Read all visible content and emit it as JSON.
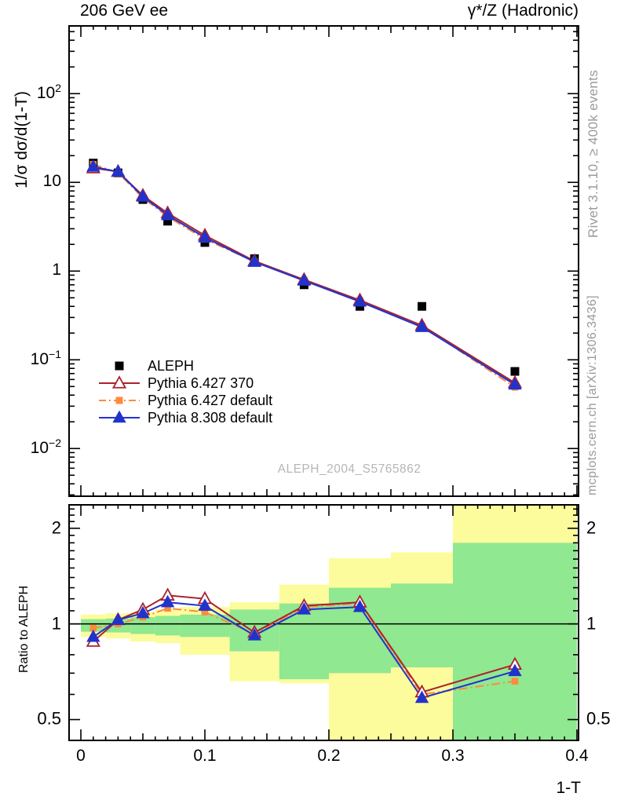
{
  "header": {
    "left": "206 GeV ee",
    "right": "γ*/Z (Hadronic)"
  },
  "side_notes": {
    "top": "Rivet 3.1.10, ≥ 400k events",
    "bottom": "mcplots.cern.ch [arXiv:1306.3436]"
  },
  "watermark": "ALEPH_2004_S5765862",
  "colors": {
    "aleph": "#000000",
    "pythia6_370": "#aa2230",
    "pythia6_default": "#ff8a3c",
    "pythia8_default": "#2233cc",
    "band_yellow": "#fcfc9c",
    "band_green": "#90e890",
    "gray_text": "#9b9b9b",
    "watermark_gray": "#b6b6b6"
  },
  "chart_data": [
    {
      "id": "main-distribution",
      "type": "line",
      "title": "",
      "xlabel": "",
      "ylabel": "1/σ dσ/d(1-T)",
      "yscale": "log",
      "xlim": [
        0,
        0.4
      ],
      "ylim": [
        0.0029,
        580
      ],
      "grid": false,
      "legend_position": "lower-left",
      "bin_edges": [
        0,
        0.02,
        0.04,
        0.06,
        0.08,
        0.12,
        0.16,
        0.2,
        0.25,
        0.3,
        0.4
      ],
      "x": [
        0.01,
        0.03,
        0.05,
        0.07,
        0.1,
        0.14,
        0.18,
        0.225,
        0.275,
        0.35
      ],
      "y_ticks": [
        {
          "label": "10",
          "exp": "2",
          "value": 100
        },
        {
          "label": "10",
          "exp": "",
          "value": 10
        },
        {
          "label": "1",
          "exp": "",
          "value": 1
        },
        {
          "label": "10",
          "exp": "−1",
          "value": 0.1
        },
        {
          "label": "10",
          "exp": "−2",
          "value": 0.01
        }
      ],
      "series": [
        {
          "name": "ALEPH",
          "marker": "filled-square",
          "line": "none",
          "color_key": "aleph",
          "values": [
            16.5,
            12.8,
            6.4,
            3.65,
            2.1,
            1.38,
            0.7,
            0.4,
            0.4,
            0.074
          ]
        },
        {
          "name": "Pythia 6.427 370",
          "marker": "open-triangle",
          "line": "solid",
          "color_key": "pythia6_370",
          "values": [
            14.5,
            13.2,
            7.1,
            4.5,
            2.52,
            1.3,
            0.8,
            0.47,
            0.244,
            0.055
          ]
        },
        {
          "name": "Pythia 6.427 default",
          "marker": "filled-square",
          "line": "dashdot",
          "color_key": "pythia6_default",
          "values": [
            16.0,
            12.8,
            6.7,
            4.1,
            2.29,
            1.28,
            0.79,
            0.464,
            0.24,
            0.049
          ]
        },
        {
          "name": "Pythia 8.308 default",
          "marker": "filled-triangle",
          "line": "solid",
          "color_key": "pythia8_default",
          "values": [
            15.0,
            13.2,
            6.9,
            4.27,
            2.39,
            1.27,
            0.78,
            0.452,
            0.234,
            0.0525
          ]
        }
      ]
    },
    {
      "id": "ratio-panel",
      "type": "line",
      "xlabel": "1-T",
      "ylabel": "Ratio to ALEPH",
      "yscale": "log",
      "xlim": [
        0,
        0.4
      ],
      "ylim": [
        0.43,
        2.37
      ],
      "reference_line": 1,
      "x_ticks": [
        {
          "label": "0",
          "value": 0
        },
        {
          "label": "0.1",
          "value": 0.1
        },
        {
          "label": "0.2",
          "value": 0.2
        },
        {
          "label": "0.3",
          "value": 0.3
        },
        {
          "label": "0.4",
          "value": 0.4
        }
      ],
      "y_ticks": [
        {
          "label": "2",
          "value": 2
        },
        {
          "label": "1",
          "value": 1
        },
        {
          "label": "0.5",
          "value": 0.5
        }
      ],
      "bands": [
        {
          "x": [
            0.0,
            0.02
          ],
          "outer": [
            0.91,
            1.07
          ],
          "inner": [
            0.945,
            1.035
          ]
        },
        {
          "x": [
            0.02,
            0.04
          ],
          "outer": [
            0.9,
            1.08
          ],
          "inner": [
            0.94,
            1.04
          ]
        },
        {
          "x": [
            0.04,
            0.06
          ],
          "outer": [
            0.88,
            1.09
          ],
          "inner": [
            0.93,
            1.05
          ]
        },
        {
          "x": [
            0.06,
            0.08
          ],
          "outer": [
            0.87,
            1.11
          ],
          "inner": [
            0.92,
            1.06
          ]
        },
        {
          "x": [
            0.08,
            0.12
          ],
          "outer": [
            0.8,
            1.13
          ],
          "inner": [
            0.91,
            1.07
          ]
        },
        {
          "x": [
            0.12,
            0.16
          ],
          "outer": [
            0.66,
            1.17
          ],
          "inner": [
            0.82,
            1.11
          ]
        },
        {
          "x": [
            0.16,
            0.2
          ],
          "outer": [
            0.65,
            1.33
          ],
          "inner": [
            0.67,
            1.16
          ]
        },
        {
          "x": [
            0.2,
            0.25
          ],
          "outer": [
            0.43,
            1.61
          ],
          "inner": [
            0.7,
            1.3
          ]
        },
        {
          "x": [
            0.25,
            0.3
          ],
          "outer": [
            0.43,
            1.68
          ],
          "inner": [
            0.73,
            1.34
          ]
        },
        {
          "x": [
            0.3,
            0.4
          ],
          "outer": [
            0.43,
            2.37
          ],
          "inner": [
            0.43,
            1.8
          ]
        }
      ],
      "x": [
        0.01,
        0.03,
        0.05,
        0.07,
        0.1,
        0.14,
        0.18,
        0.225,
        0.275,
        0.35
      ],
      "series": [
        {
          "name": "Pythia 6.427 370",
          "marker": "open-triangle",
          "line": "solid",
          "color_key": "pythia6_370",
          "values": [
            0.88,
            1.03,
            1.11,
            1.23,
            1.2,
            0.94,
            1.14,
            1.17,
            0.61,
            0.745
          ]
        },
        {
          "name": "Pythia 6.427 default",
          "marker": "filled-square",
          "line": "dashdot",
          "color_key": "pythia6_default",
          "values": [
            0.97,
            1.0,
            1.05,
            1.12,
            1.09,
            0.93,
            1.13,
            1.16,
            0.6,
            0.66
          ]
        },
        {
          "name": "Pythia 8.308 default",
          "marker": "filled-triangle",
          "line": "solid",
          "color_key": "pythia8_default",
          "values": [
            0.91,
            1.03,
            1.08,
            1.17,
            1.14,
            0.92,
            1.11,
            1.13,
            0.585,
            0.71
          ]
        }
      ]
    }
  ]
}
